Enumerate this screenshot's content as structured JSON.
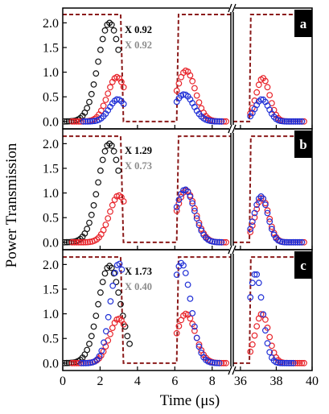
{
  "figure": {
    "ylabel": "Power Transmission",
    "xlabel": "Time (μs)",
    "colors": {
      "black": "#111111",
      "red": "#e8232a",
      "blue": "#1f2fd6",
      "control": "#8b1a1a",
      "annotation_gray": "#8c8c8c"
    },
    "y_ticks": [
      "0.0",
      "0.5",
      "1.0",
      "1.5",
      "2.0"
    ],
    "x_ticks_left": [
      "0",
      "2",
      "4",
      "6",
      "8"
    ],
    "x_ticks_right": [
      "36",
      "38",
      "40"
    ]
  },
  "chart_data": [
    {
      "type": "scatter",
      "panel_label": "a",
      "annotations": [
        "X 0.92",
        "X 0.92"
      ],
      "xlim_left": [
        0,
        9
      ],
      "xlim_right": [
        35.6,
        40
      ],
      "ylim": [
        -0.15,
        2.3
      ],
      "series": [
        {
          "role": "black",
          "pulses": [
            {
              "x0": 2.5,
              "sigma": 0.6,
              "amp": 2.0,
              "xmin": 0.1,
              "xmax": 3.0,
              "step": 0.12
            }
          ]
        },
        {
          "role": "red",
          "pulses": [
            {
              "x0": 2.9,
              "sigma": 0.5,
              "amp": 0.9,
              "xmin": 0.5,
              "xmax": 3.3,
              "step": 0.12
            },
            {
              "x0": 6.6,
              "sigma": 0.5,
              "amp": 1.03,
              "xmin": 6.1,
              "xmax": 8.8,
              "step": 0.12
            },
            {
              "x0": 37.25,
              "sigma": 0.38,
              "amp": 0.88,
              "xmin": 36.55,
              "xmax": 39.6,
              "step": 0.12
            }
          ]
        },
        {
          "role": "blue",
          "pulses": [
            {
              "x0": 2.95,
              "sigma": 0.45,
              "amp": 0.45,
              "xmin": 1.1,
              "xmax": 3.3,
              "step": 0.12
            },
            {
              "x0": 6.5,
              "sigma": 0.5,
              "amp": 0.55,
              "xmin": 6.1,
              "xmax": 8.6,
              "step": 0.12
            },
            {
              "x0": 37.2,
              "sigma": 0.38,
              "amp": 0.45,
              "xmin": 36.55,
              "xmax": 39.5,
              "step": 0.12
            }
          ]
        }
      ],
      "control": {
        "high": 2.17,
        "low": 0.0,
        "t_off": 3.1,
        "t_on": 6.1,
        "end_left": 9.0,
        "start_right": 35.6,
        "t_on_right": 36.5,
        "end_right": 40.0
      }
    },
    {
      "type": "scatter",
      "panel_label": "b",
      "annotations": [
        "X 1.29",
        "X 0.73"
      ],
      "xlim_left": [
        0,
        9
      ],
      "xlim_right": [
        35.6,
        40
      ],
      "ylim": [
        -0.15,
        2.3
      ],
      "series": [
        {
          "role": "black",
          "pulses": [
            {
              "x0": 2.5,
              "sigma": 0.6,
              "amp": 2.0,
              "xmin": 0.1,
              "xmax": 3.0,
              "step": 0.12
            }
          ]
        },
        {
          "role": "red",
          "pulses": [
            {
              "x0": 3.0,
              "sigma": 0.5,
              "amp": 0.95,
              "xmin": 0.5,
              "xmax": 3.3,
              "step": 0.12
            },
            {
              "x0": 6.6,
              "sigma": 0.5,
              "amp": 1.05,
              "xmin": 6.1,
              "xmax": 8.8,
              "step": 0.12
            },
            {
              "x0": 37.2,
              "sigma": 0.38,
              "amp": 0.9,
              "xmin": 36.55,
              "xmax": 39.6,
              "step": 0.12
            }
          ]
        },
        {
          "role": "blue",
          "pulses": [
            {
              "x0": 6.55,
              "sigma": 0.5,
              "amp": 1.07,
              "xmin": 6.1,
              "xmax": 8.6,
              "step": 0.12
            },
            {
              "x0": 37.15,
              "sigma": 0.38,
              "amp": 0.93,
              "xmin": 36.55,
              "xmax": 39.5,
              "step": 0.12
            }
          ]
        }
      ],
      "control": {
        "high": 2.15,
        "low": 0.0,
        "t_off": 3.1,
        "t_on": 6.1,
        "end_left": 9.0,
        "start_right": 35.6,
        "t_on_right": 36.5,
        "end_right": 40.0
      }
    },
    {
      "type": "scatter",
      "panel_label": "c",
      "annotations": [
        "X 1.73",
        "X 0.40"
      ],
      "xlim_left": [
        0,
        9
      ],
      "xlim_right": [
        35.6,
        40
      ],
      "ylim": [
        -0.15,
        2.3
      ],
      "series": [
        {
          "role": "black",
          "pulses": [
            {
              "x0": 2.5,
              "sigma": 0.6,
              "amp": 1.97,
              "xmin": 0.1,
              "xmax": 3.6,
              "step": 0.12
            }
          ]
        },
        {
          "role": "red",
          "pulses": [
            {
              "x0": 3.0,
              "sigma": 0.5,
              "amp": 0.9,
              "xmin": 0.5,
              "xmax": 3.3,
              "step": 0.12
            },
            {
              "x0": 6.6,
              "sigma": 0.5,
              "amp": 1.0,
              "xmin": 6.1,
              "xmax": 8.8,
              "step": 0.12
            },
            {
              "x0": 37.2,
              "sigma": 0.38,
              "amp": 1.0,
              "xmin": 36.55,
              "xmax": 39.6,
              "step": 0.12
            }
          ]
        },
        {
          "role": "blue",
          "pulses": [
            {
              "x0": 3.0,
              "sigma": 0.45,
              "amp": 2.02,
              "xmin": 1.0,
              "xmax": 3.2,
              "step": 0.12
            },
            {
              "x0": 6.35,
              "sigma": 0.5,
              "amp": 2.03,
              "xmin": 6.1,
              "xmax": 8.4,
              "step": 0.12
            },
            {
              "x0": 36.85,
              "sigma": 0.38,
              "amp": 1.82,
              "xmin": 36.55,
              "xmax": 39.0,
              "step": 0.12
            }
          ]
        }
      ],
      "control": {
        "high": 2.15,
        "low": 0.0,
        "t_off": 3.1,
        "t_on": 6.1,
        "end_left": 9.0,
        "start_right": 35.6,
        "t_on_right": 36.5,
        "end_right": 40.0
      }
    }
  ]
}
